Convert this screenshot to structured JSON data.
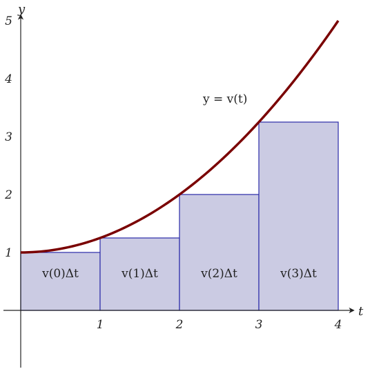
{
  "chart_data": {
    "type": "area",
    "xlabel": "t",
    "ylabel": "y",
    "xlim": [
      0,
      4
    ],
    "ylim": [
      -1,
      5
    ],
    "x_ticks": [
      "1",
      "2",
      "3",
      "4"
    ],
    "y_ticks": [
      "1",
      "2",
      "3",
      "4",
      "5"
    ],
    "curve": {
      "label": "y = v(t)",
      "formula": "1 + t^2/4",
      "color": "#7a0000"
    },
    "rectangles": [
      {
        "x0": 0,
        "x1": 1,
        "height": 1.0,
        "label": "v(0)Δt"
      },
      {
        "x0": 1,
        "x1": 2,
        "height": 1.25,
        "label": "v(1)Δt"
      },
      {
        "x0": 2,
        "x1": 3,
        "height": 2.0,
        "label": "v(2)Δt"
      },
      {
        "x0": 3,
        "x1": 4,
        "height": 3.25,
        "label": "v(3)Δt"
      }
    ],
    "rect_fill": "#cbcbe3",
    "rect_stroke": "#2a2aa8"
  }
}
